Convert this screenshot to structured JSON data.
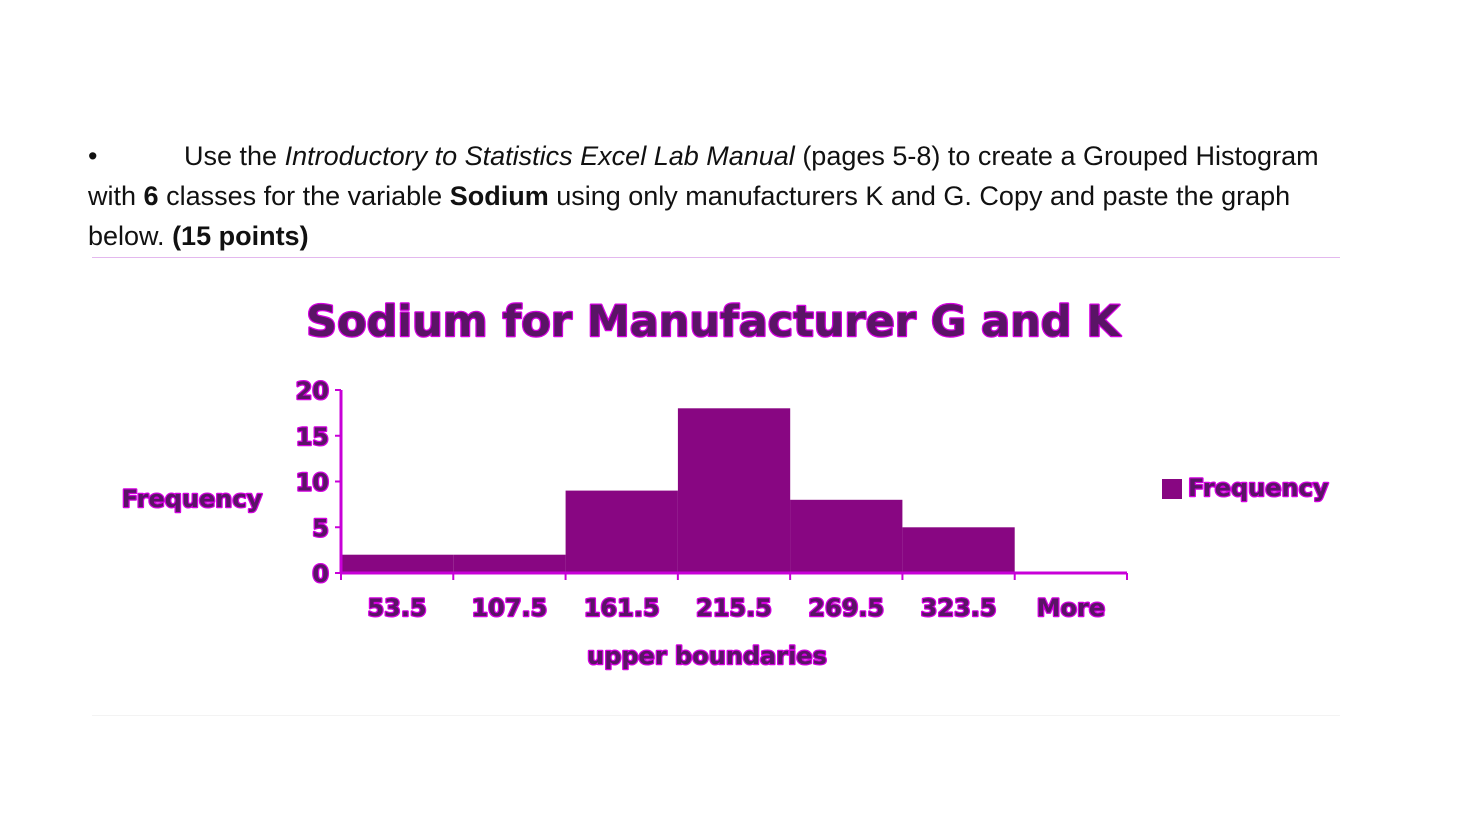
{
  "instructions": {
    "bullet": "•",
    "part1": "Use the ",
    "manual_title": "Introductory to Statistics Excel Lab Manual",
    "part2": " (pages 5-8) to create a Grouped Histogram with ",
    "classes_count": "6",
    "part3": " classes for the variable ",
    "variable": "Sodium",
    "part4": " using only manufacturers K and G. Copy and paste the graph below. ",
    "points": "(15 points)"
  },
  "colors": {
    "bar_fill": "#880682",
    "axis": "#c800d8",
    "text_fill": "#5a1466",
    "text_glow": "#d400e0"
  },
  "chart_data": {
    "type": "bar",
    "title": "Sodium for Manufacturer G and K",
    "xlabel": "upper boundaries",
    "ylabel": "Frequency",
    "categories": [
      "53.5",
      "107.5",
      "161.5",
      "215.5",
      "269.5",
      "323.5",
      "More"
    ],
    "series": [
      {
        "name": "Frequency",
        "values": [
          2,
          2,
          9,
          18,
          8,
          5,
          0
        ]
      }
    ],
    "ylim": [
      0,
      20
    ],
    "yticks": [
      0,
      5,
      10,
      15,
      20
    ],
    "grid": false,
    "legend_position": "right"
  }
}
